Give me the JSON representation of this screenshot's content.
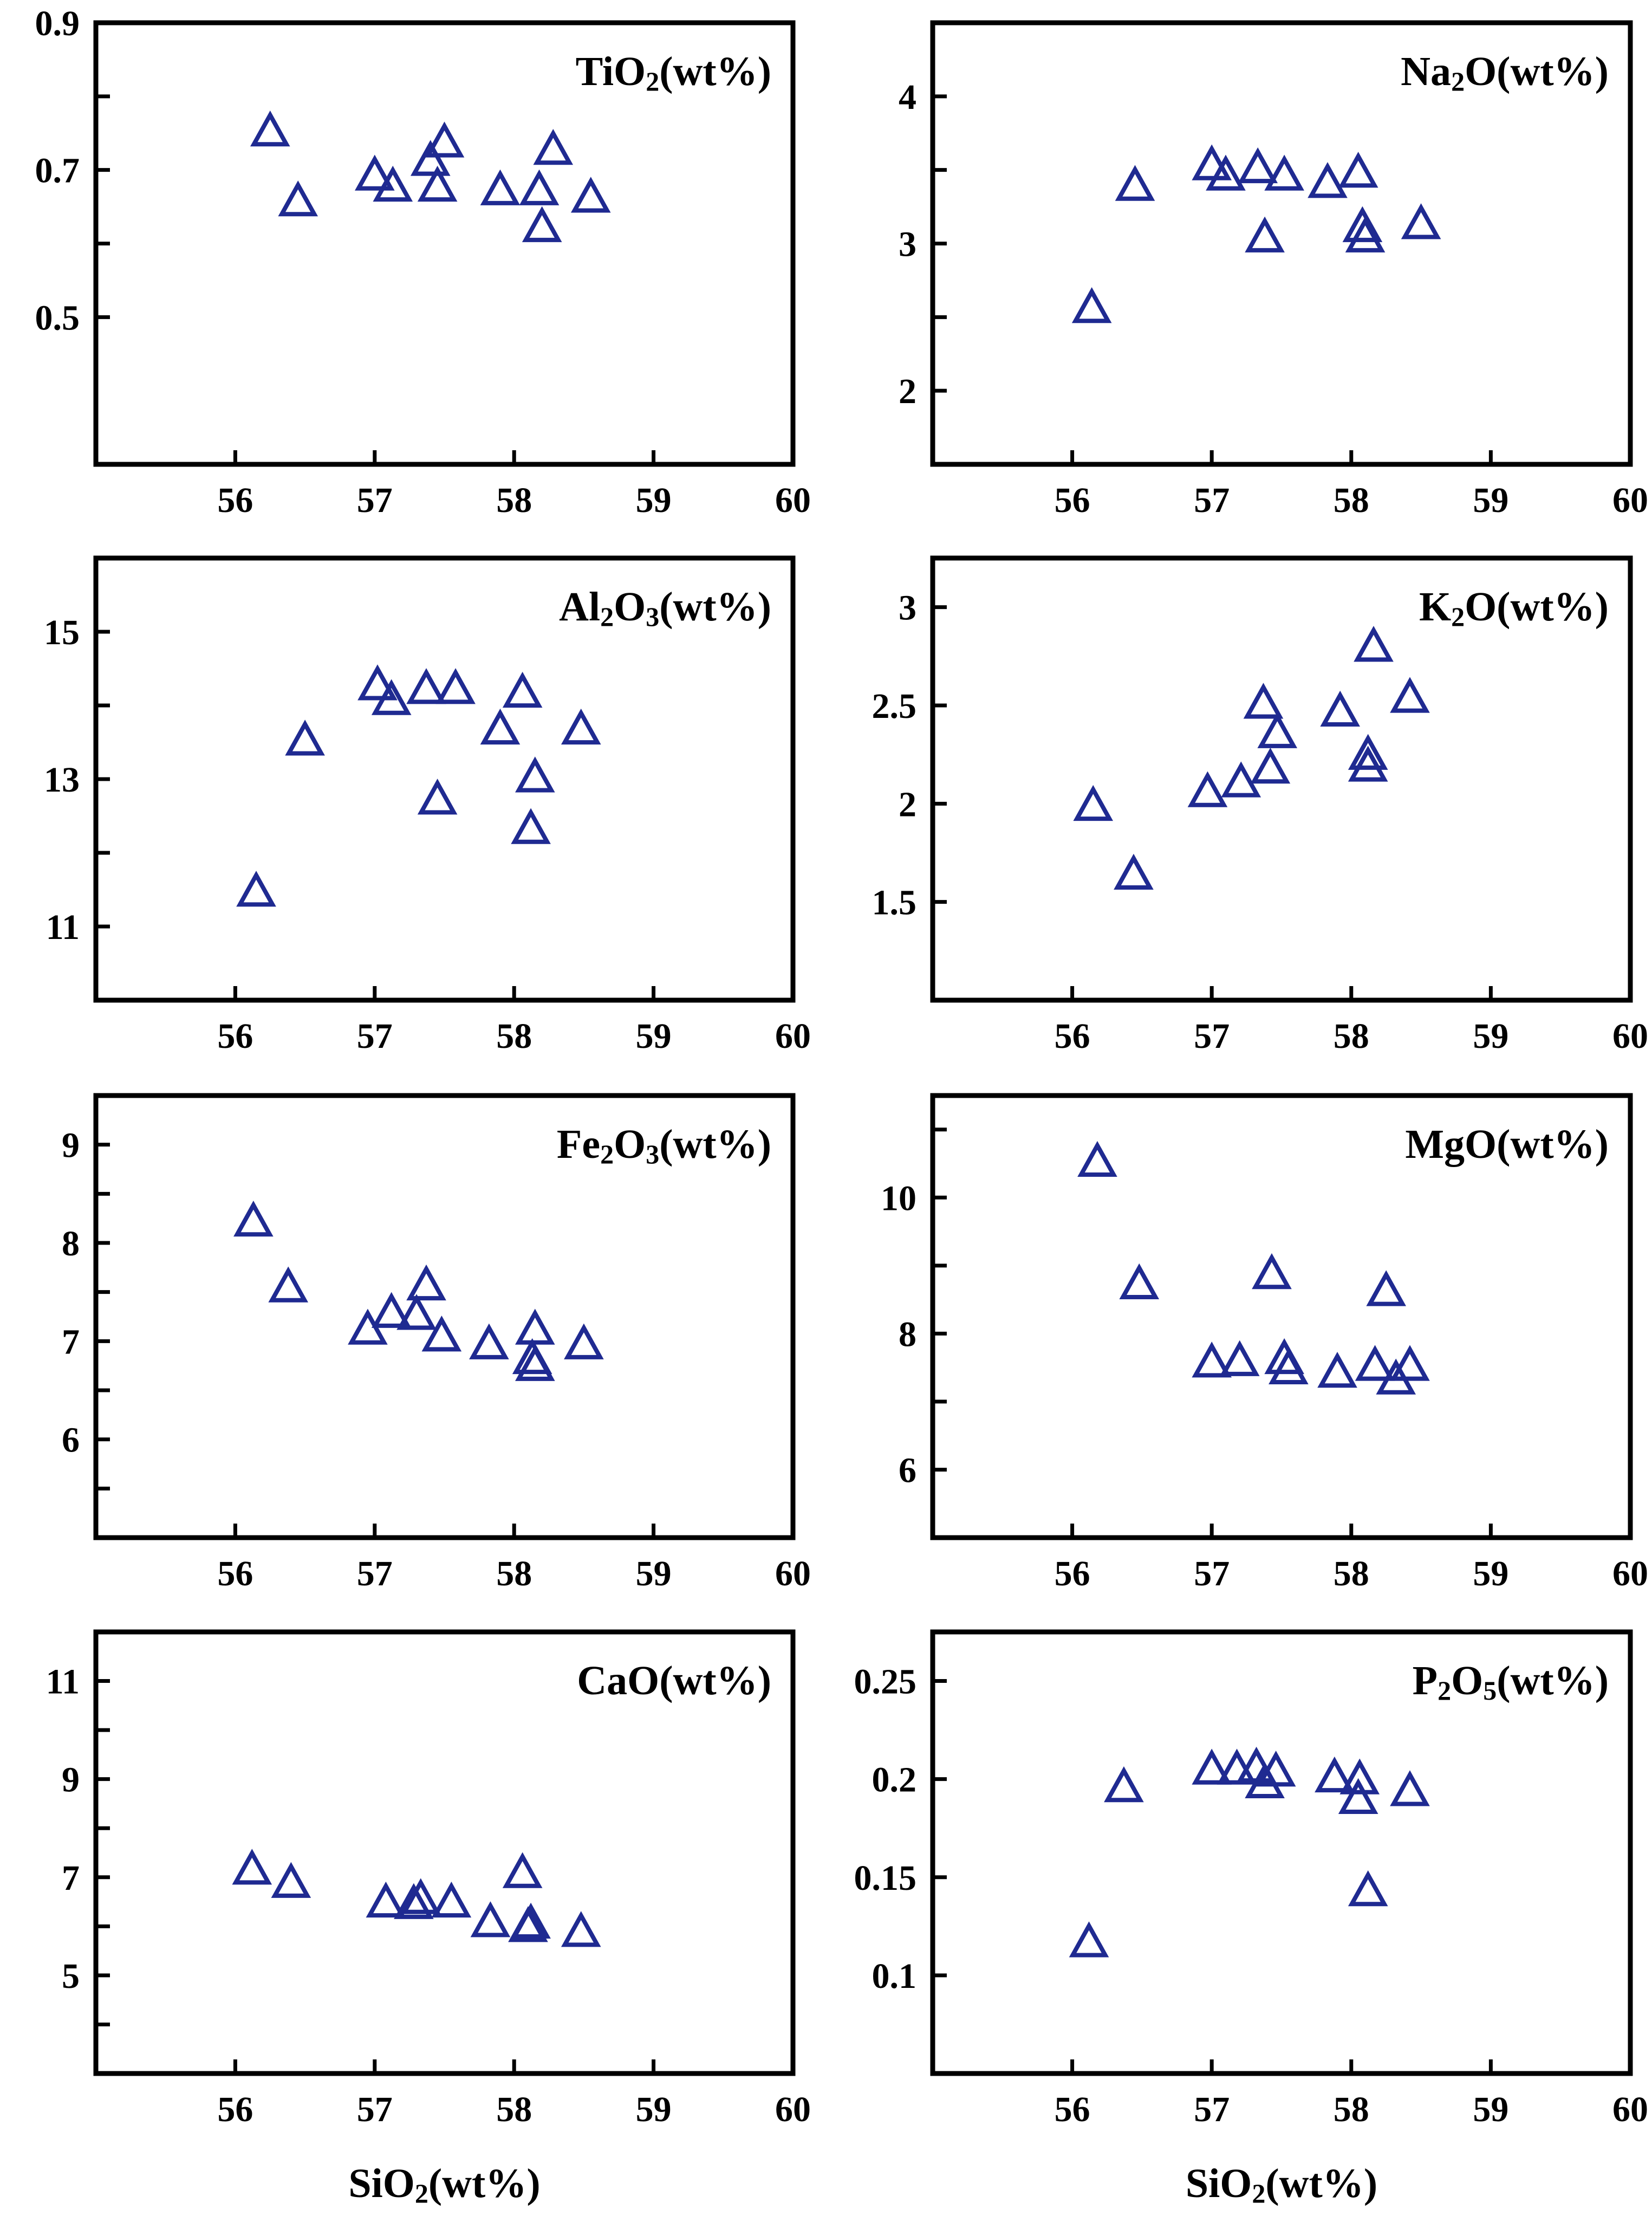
{
  "figure": {
    "marker_color": "#1F2A91",
    "marker_shape": "open-triangle",
    "shared_xlabel": {
      "main": "SiO",
      "sub": "2",
      "rest": "(wt%)"
    }
  },
  "chart_data": [
    {
      "type": "scatter",
      "id": "tio2",
      "row": 0,
      "col": 0,
      "title": {
        "main": "TiO",
        "sub": "2",
        "rest": "(wt%)"
      },
      "xlim": [
        55,
        60
      ],
      "ylim": [
        0.3,
        0.9
      ],
      "xticks": [
        56,
        57,
        58,
        59,
        60
      ],
      "xtick_labels": [
        "56",
        "57",
        "58",
        "59",
        "60"
      ],
      "yticks": [
        0.5,
        0.6,
        0.7,
        0.8,
        0.9
      ],
      "ytick_labels": [
        "0.5",
        "",
        "0.7",
        "",
        "0.9"
      ],
      "show_xlabel": false,
      "points": [
        [
          56.25,
          0.75
        ],
        [
          56.45,
          0.655
        ],
        [
          57.0,
          0.69
        ],
        [
          57.13,
          0.675
        ],
        [
          57.4,
          0.71
        ],
        [
          57.45,
          0.675
        ],
        [
          57.5,
          0.735
        ],
        [
          57.9,
          0.67
        ],
        [
          58.18,
          0.67
        ],
        [
          58.28,
          0.725
        ],
        [
          58.2,
          0.62
        ],
        [
          58.55,
          0.66
        ]
      ]
    },
    {
      "type": "scatter",
      "id": "na2o",
      "row": 0,
      "col": 1,
      "title": {
        "main": "Na",
        "sub": "2",
        "rest": "O(wt%)"
      },
      "xlim": [
        55,
        60
      ],
      "ylim": [
        1.5,
        4.5
      ],
      "xticks": [
        56,
        57,
        58,
        59,
        60
      ],
      "xtick_labels": [
        "56",
        "57",
        "58",
        "59",
        "60"
      ],
      "yticks": [
        2,
        2.5,
        3,
        3.5,
        4
      ],
      "ytick_labels": [
        "2",
        "",
        "3",
        "",
        "4"
      ],
      "show_xlabel": false,
      "points": [
        [
          56.14,
          2.55
        ],
        [
          56.45,
          3.38
        ],
        [
          57.0,
          3.52
        ],
        [
          57.1,
          3.45
        ],
        [
          57.33,
          3.5
        ],
        [
          57.38,
          3.03
        ],
        [
          57.52,
          3.45
        ],
        [
          57.83,
          3.4
        ],
        [
          58.05,
          3.47
        ],
        [
          58.08,
          3.1
        ],
        [
          58.1,
          3.03
        ],
        [
          58.5,
          3.12
        ]
      ]
    },
    {
      "type": "scatter",
      "id": "al2o3",
      "row": 1,
      "col": 0,
      "title": {
        "main": "Al",
        "sub": "2",
        "main2": "O",
        "sub2": "3",
        "rest": "(wt%)"
      },
      "xlim": [
        55,
        60
      ],
      "ylim": [
        10,
        16
      ],
      "xticks": [
        56,
        57,
        58,
        59,
        60
      ],
      "xtick_labels": [
        "56",
        "57",
        "58",
        "59",
        "60"
      ],
      "yticks": [
        11,
        12,
        13,
        14,
        15
      ],
      "ytick_labels": [
        "11",
        "",
        "13",
        "",
        "15"
      ],
      "show_xlabel": false,
      "points": [
        [
          56.15,
          11.45
        ],
        [
          56.5,
          13.5
        ],
        [
          57.02,
          14.25
        ],
        [
          57.12,
          14.05
        ],
        [
          57.37,
          14.2
        ],
        [
          57.45,
          12.7
        ],
        [
          57.58,
          14.2
        ],
        [
          57.9,
          13.65
        ],
        [
          58.06,
          14.15
        ],
        [
          58.15,
          13.0
        ],
        [
          58.12,
          12.3
        ],
        [
          58.48,
          13.65
        ]
      ]
    },
    {
      "type": "scatter",
      "id": "k2o",
      "row": 1,
      "col": 1,
      "title": {
        "main": "K",
        "sub": "2",
        "rest": "O(wt%)"
      },
      "xlim": [
        55,
        60
      ],
      "ylim": [
        1,
        3.25
      ],
      "xticks": [
        56,
        57,
        58,
        59,
        60
      ],
      "xtick_labels": [
        "56",
        "57",
        "58",
        "59",
        "60"
      ],
      "yticks": [
        1.5,
        2,
        2.5,
        3
      ],
      "ytick_labels": [
        "1.5",
        "2",
        "2.5",
        "3"
      ],
      "show_xlabel": false,
      "points": [
        [
          56.15,
          1.98
        ],
        [
          56.44,
          1.63
        ],
        [
          56.97,
          2.05
        ],
        [
          57.21,
          2.1
        ],
        [
          57.37,
          2.5
        ],
        [
          57.42,
          2.17
        ],
        [
          57.47,
          2.35
        ],
        [
          57.92,
          2.46
        ],
        [
          58.12,
          2.24
        ],
        [
          58.12,
          2.18
        ],
        [
          58.16,
          2.79
        ],
        [
          58.42,
          2.53
        ]
      ]
    },
    {
      "type": "scatter",
      "id": "fe2o3",
      "row": 2,
      "col": 0,
      "title": {
        "main": "Fe",
        "sub": "2",
        "main2": "O",
        "sub2": "3",
        "rest": "(wt%)"
      },
      "xlim": [
        55,
        60
      ],
      "ylim": [
        5,
        9.5
      ],
      "xticks": [
        56,
        57,
        58,
        59,
        60
      ],
      "xtick_labels": [
        "56",
        "57",
        "58",
        "59",
        "60"
      ],
      "yticks": [
        5.5,
        6,
        6.5,
        7,
        7.5,
        8,
        8.5,
        9
      ],
      "ytick_labels": [
        "",
        "6",
        "",
        "7",
        "",
        "8",
        "",
        "9"
      ],
      "show_xlabel": false,
      "points": [
        [
          56.13,
          8.2
        ],
        [
          56.38,
          7.53
        ],
        [
          56.95,
          7.1
        ],
        [
          57.12,
          7.27
        ],
        [
          57.3,
          7.25
        ],
        [
          57.37,
          7.55
        ],
        [
          57.48,
          7.03
        ],
        [
          57.82,
          6.95
        ],
        [
          58.15,
          7.1
        ],
        [
          58.13,
          6.8
        ],
        [
          58.15,
          6.73
        ],
        [
          58.5,
          6.95
        ]
      ]
    },
    {
      "type": "scatter",
      "id": "mgo",
      "row": 2,
      "col": 1,
      "title": {
        "main": "MgO(wt%)"
      },
      "xlim": [
        55,
        60
      ],
      "ylim": [
        5,
        11.5
      ],
      "xticks": [
        56,
        57,
        58,
        59,
        60
      ],
      "xtick_labels": [
        "56",
        "57",
        "58",
        "59",
        "60"
      ],
      "yticks": [
        6,
        7,
        8,
        9,
        10,
        11
      ],
      "ytick_labels": [
        "6",
        "",
        "8",
        "",
        "10",
        ""
      ],
      "show_xlabel": false,
      "points": [
        [
          56.18,
          10.5
        ],
        [
          56.48,
          8.7
        ],
        [
          57.0,
          7.55
        ],
        [
          57.2,
          7.57
        ],
        [
          57.43,
          8.85
        ],
        [
          57.52,
          7.6
        ],
        [
          57.55,
          7.45
        ],
        [
          57.9,
          7.4
        ],
        [
          58.17,
          7.5
        ],
        [
          58.25,
          8.6
        ],
        [
          58.32,
          7.3
        ],
        [
          58.42,
          7.5
        ]
      ]
    },
    {
      "type": "scatter",
      "id": "cao",
      "row": 3,
      "col": 0,
      "title": {
        "main": "CaO(wt%)"
      },
      "xlim": [
        55,
        60
      ],
      "ylim": [
        3,
        12
      ],
      "xticks": [
        56,
        57,
        58,
        59,
        60
      ],
      "xtick_labels": [
        "56",
        "57",
        "58",
        "59",
        "60"
      ],
      "yticks": [
        4,
        5,
        6,
        7,
        8,
        9,
        10,
        11
      ],
      "ytick_labels": [
        "",
        "5",
        "",
        "7",
        "",
        "9",
        "",
        "11"
      ],
      "show_xlabel": true,
      "points": [
        [
          56.12,
          7.12
        ],
        [
          56.4,
          6.85
        ],
        [
          57.08,
          6.45
        ],
        [
          57.28,
          6.42
        ],
        [
          57.33,
          6.52
        ],
        [
          57.55,
          6.45
        ],
        [
          57.83,
          6.05
        ],
        [
          58.06,
          7.05
        ],
        [
          58.1,
          5.95
        ],
        [
          58.12,
          6.02
        ],
        [
          58.48,
          5.85
        ]
      ]
    },
    {
      "type": "scatter",
      "id": "p2o5",
      "row": 3,
      "col": 1,
      "title": {
        "main": "P",
        "sub": "2",
        "main2": "O",
        "sub2": "5",
        "rest": "(wt%)"
      },
      "xlim": [
        55,
        60
      ],
      "ylim": [
        0.05,
        0.275
      ],
      "xticks": [
        56,
        57,
        58,
        59,
        60
      ],
      "xtick_labels": [
        "56",
        "57",
        "58",
        "59",
        "60"
      ],
      "yticks": [
        0.1,
        0.15,
        0.2,
        0.25
      ],
      "ytick_labels": [
        "0.1",
        "0.15",
        "0.2",
        "0.25"
      ],
      "show_xlabel": true,
      "points": [
        [
          56.12,
          0.116
        ],
        [
          56.37,
          0.195
        ],
        [
          57.0,
          0.204
        ],
        [
          57.18,
          0.204
        ],
        [
          57.32,
          0.205
        ],
        [
          57.38,
          0.197
        ],
        [
          57.46,
          0.203
        ],
        [
          57.88,
          0.2
        ],
        [
          58.06,
          0.199
        ],
        [
          58.05,
          0.189
        ],
        [
          58.12,
          0.142
        ],
        [
          58.42,
          0.193
        ]
      ]
    }
  ]
}
